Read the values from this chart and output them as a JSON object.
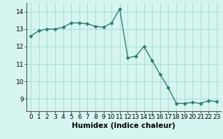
{
  "x": [
    0,
    1,
    2,
    3,
    4,
    5,
    6,
    7,
    8,
    9,
    10,
    11,
    12,
    13,
    14,
    15,
    16,
    17,
    18,
    19,
    20,
    21,
    22,
    23
  ],
  "y": [
    12.6,
    12.9,
    13.0,
    13.0,
    13.1,
    13.35,
    13.35,
    13.3,
    13.15,
    13.1,
    13.35,
    14.15,
    11.35,
    11.45,
    12.0,
    11.2,
    10.4,
    9.65,
    8.75,
    8.75,
    8.8,
    8.75,
    8.9,
    8.85
  ],
  "line_color": "#2e7d6e",
  "marker": "D",
  "marker_size": 2.5,
  "background_color": "#d6f5f0",
  "grid_color": "#a8ddd6",
  "xlabel": "Humidex (Indice chaleur)",
  "xlabel_fontsize": 7.5,
  "tick_fontsize": 6.5,
  "ylim": [
    8.3,
    14.5
  ],
  "xlim": [
    -0.5,
    23.5
  ],
  "yticks": [
    9,
    10,
    11,
    12,
    13,
    14
  ],
  "xticks": [
    0,
    1,
    2,
    3,
    4,
    5,
    6,
    7,
    8,
    9,
    10,
    11,
    12,
    13,
    14,
    15,
    16,
    17,
    18,
    19,
    20,
    21,
    22,
    23
  ]
}
